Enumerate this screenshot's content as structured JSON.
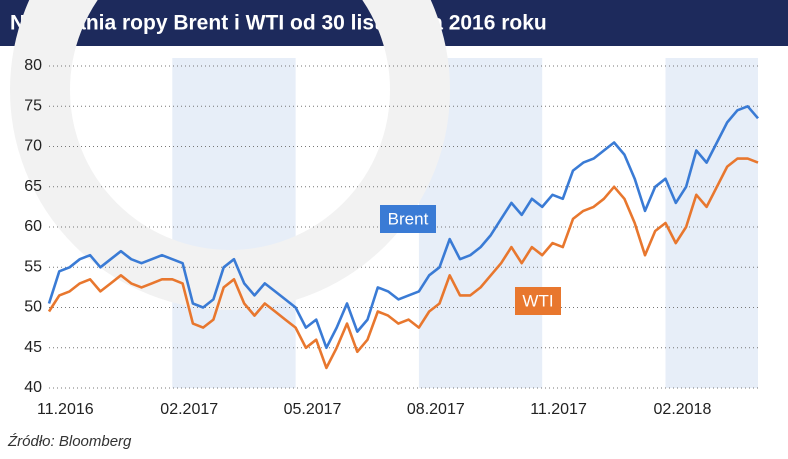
{
  "chart_data": {
    "type": "line",
    "title": "Notowania ropy Brent i WTI od 30 listopada 2016 roku",
    "source": "Źródło: Bloomberg",
    "categories": [
      "11.2016",
      null,
      null,
      null,
      null,
      null,
      null,
      null,
      null,
      null,
      null,
      null,
      "02.2017",
      null,
      null,
      null,
      null,
      null,
      null,
      null,
      null,
      null,
      null,
      null,
      "05.2017",
      null,
      null,
      null,
      null,
      null,
      null,
      null,
      null,
      null,
      null,
      null,
      "08.2017",
      null,
      null,
      null,
      null,
      null,
      null,
      null,
      null,
      null,
      null,
      null,
      "11.2017",
      null,
      null,
      null,
      null,
      null,
      null,
      null,
      null,
      null,
      null,
      null,
      "02.2018",
      null,
      null,
      null,
      null,
      null,
      null,
      null,
      null,
      null
    ],
    "series": [
      {
        "name": "Brent",
        "color": "#3a7bd5",
        "values": [
          50.5,
          54.5,
          55,
          56,
          56.5,
          55,
          56,
          57,
          56,
          55.5,
          56,
          56.5,
          56,
          55.5,
          50.5,
          50,
          51,
          55,
          56,
          53,
          51.5,
          53,
          52,
          51,
          50,
          47.5,
          48.5,
          45,
          47.5,
          50.5,
          47,
          48.5,
          52.5,
          52,
          51,
          51.5,
          52,
          54,
          55,
          58.5,
          56,
          56.5,
          57.5,
          59,
          61,
          63,
          61.5,
          63.5,
          62.5,
          64,
          63.5,
          67,
          68,
          68.5,
          69.5,
          70.5,
          69,
          66,
          62,
          65,
          66,
          63,
          65,
          69.5,
          68,
          70.5,
          73,
          74.5,
          75,
          73.5
        ]
      },
      {
        "name": "WTI",
        "color": "#e8772e",
        "values": [
          49.5,
          51.5,
          52,
          53,
          53.5,
          52,
          53,
          54,
          53,
          52.5,
          53,
          53.5,
          53.5,
          53,
          48,
          47.5,
          48.5,
          52.5,
          53.5,
          50.5,
          49,
          50.5,
          49.5,
          48.5,
          47.5,
          45,
          46,
          42.5,
          45,
          48,
          44.5,
          46,
          49.5,
          49,
          48,
          48.5,
          47.5,
          49.5,
          50.5,
          54,
          51.5,
          51.5,
          52.5,
          54,
          55.5,
          57.5,
          55.5,
          57.5,
          56.5,
          58,
          57.5,
          61,
          62,
          62.5,
          63.5,
          65,
          63.5,
          60.5,
          56.5,
          59.5,
          60.5,
          58,
          60,
          64,
          62.5,
          65,
          67.5,
          68.5,
          68.5,
          68
        ]
      }
    ],
    "ylim": [
      40,
      80
    ],
    "yticks": [
      40,
      45,
      50,
      55,
      60,
      65,
      70,
      75,
      80
    ],
    "grid": true
  }
}
